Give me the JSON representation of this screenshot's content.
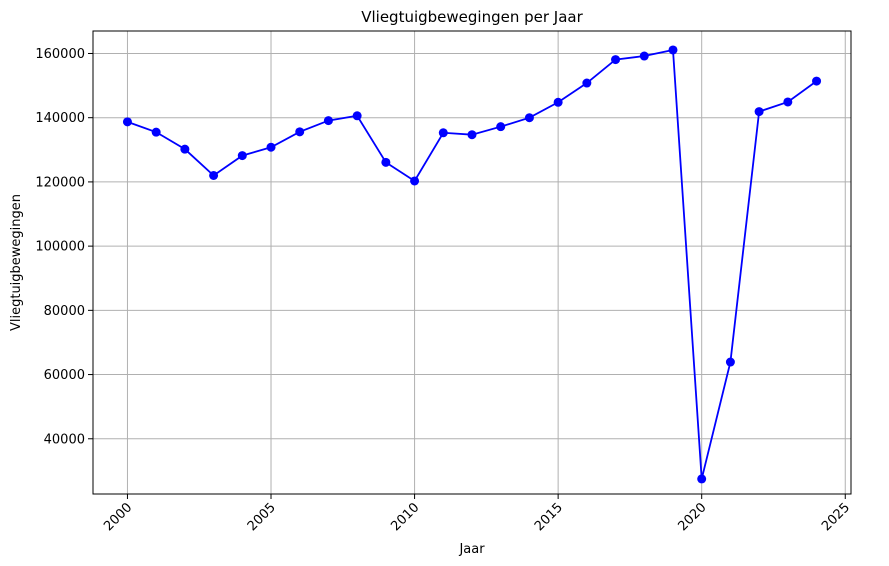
{
  "chart_data": {
    "type": "line",
    "title": "Vliegtuigbewegingen per Jaar",
    "xlabel": "Jaar",
    "ylabel": "Vliegtuigbewegingen",
    "x": [
      2000,
      2001,
      2002,
      2003,
      2004,
      2005,
      2006,
      2007,
      2008,
      2009,
      2010,
      2011,
      2012,
      2013,
      2014,
      2015,
      2016,
      2017,
      2018,
      2019,
      2020,
      2021,
      2022,
      2023,
      2024
    ],
    "series": [
      {
        "values": [
          138700,
          135500,
          130200,
          122000,
          128200,
          130800,
          135600,
          139100,
          140600,
          126100,
          120300,
          135300,
          134700,
          137200,
          140000,
          144800,
          150800,
          158100,
          159200,
          161100,
          27500,
          63900,
          141900,
          144900,
          151400
        ],
        "color": "#0000ff",
        "marker": "circle"
      }
    ],
    "xlim": [
      1998.8,
      2025.2
    ],
    "ylim": [
      22800,
      167000
    ],
    "xticks": [
      "2000",
      "2005",
      "2010",
      "2015",
      "2020",
      "2025"
    ],
    "yticks": [
      "40000",
      "60000",
      "80000",
      "100000",
      "120000",
      "140000",
      "160000"
    ],
    "xtick_rotation": 45,
    "grid": true
  }
}
